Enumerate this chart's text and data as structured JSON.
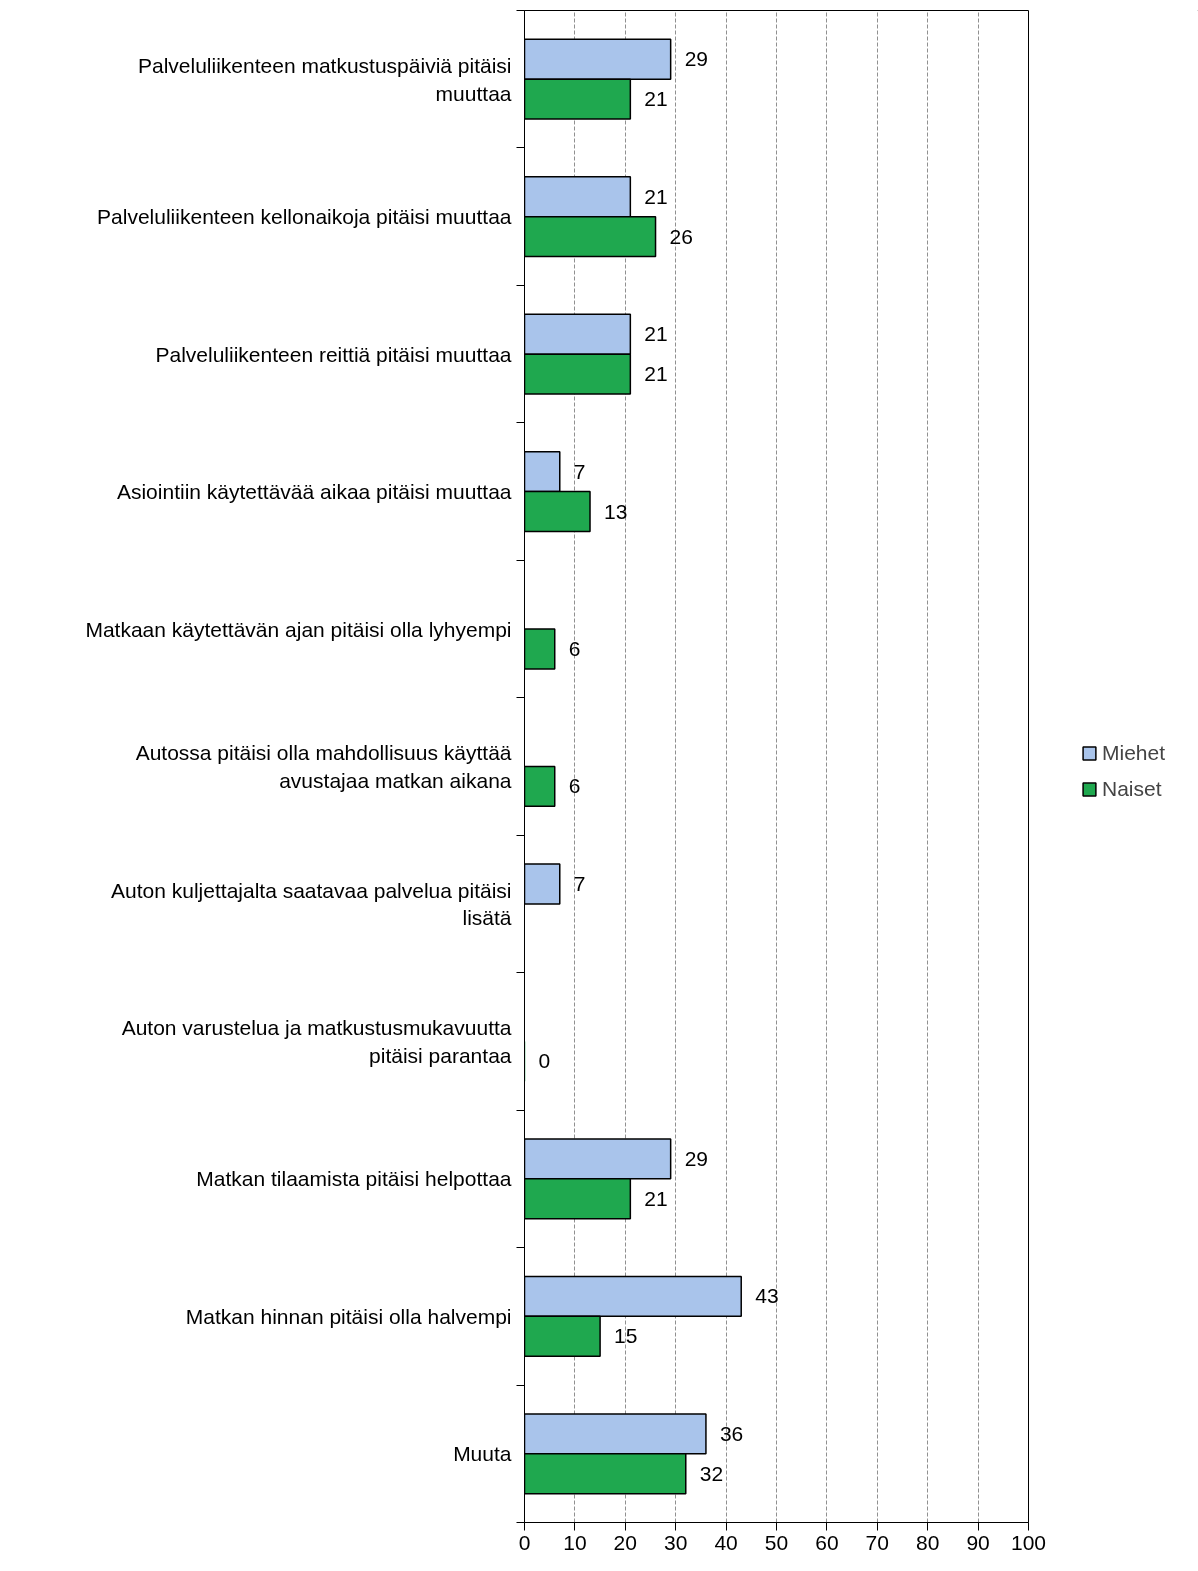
{
  "chart_data": {
    "type": "bar",
    "orientation": "horizontal",
    "categories": [
      "Palveluliikenteen matkustuspäiviä pitäisi muuttaa",
      "Palveluliikenteen kellonaikoja pitäisi muuttaa",
      "Palveluliikenteen reittiä pitäisi muuttaa",
      "Asiointiin käytettävää aikaa pitäisi muuttaa",
      "Matkaan käytettävän ajan pitäisi olla lyhyempi",
      "Autossa pitäisi olla mahdollisuus käyttää avustajaa matkan aikana",
      "Auton kuljettajalta saatavaa palvelua pitäisi lisätä",
      "Auton varustelua ja matkustusmukavuutta pitäisi parantaa",
      "Matkan tilaamista pitäisi helpottaa",
      "Matkan hinnan pitäisi olla halvempi",
      "Muuta"
    ],
    "series": [
      {
        "name": "Miehet",
        "color": "#a9c4eb",
        "values": [
          29,
          21,
          21,
          7,
          null,
          null,
          7,
          null,
          29,
          43,
          36
        ]
      },
      {
        "name": "Naiset",
        "color": "#1fa84f",
        "values": [
          21,
          26,
          21,
          13,
          6,
          6,
          null,
          0,
          21,
          15,
          32
        ]
      }
    ],
    "xlim": [
      0,
      100
    ],
    "xticks": [
      0,
      10,
      20,
      30,
      40,
      50,
      60,
      70,
      80,
      90,
      100
    ],
    "grid": "x",
    "legend": "right",
    "data_labels": true
  }
}
